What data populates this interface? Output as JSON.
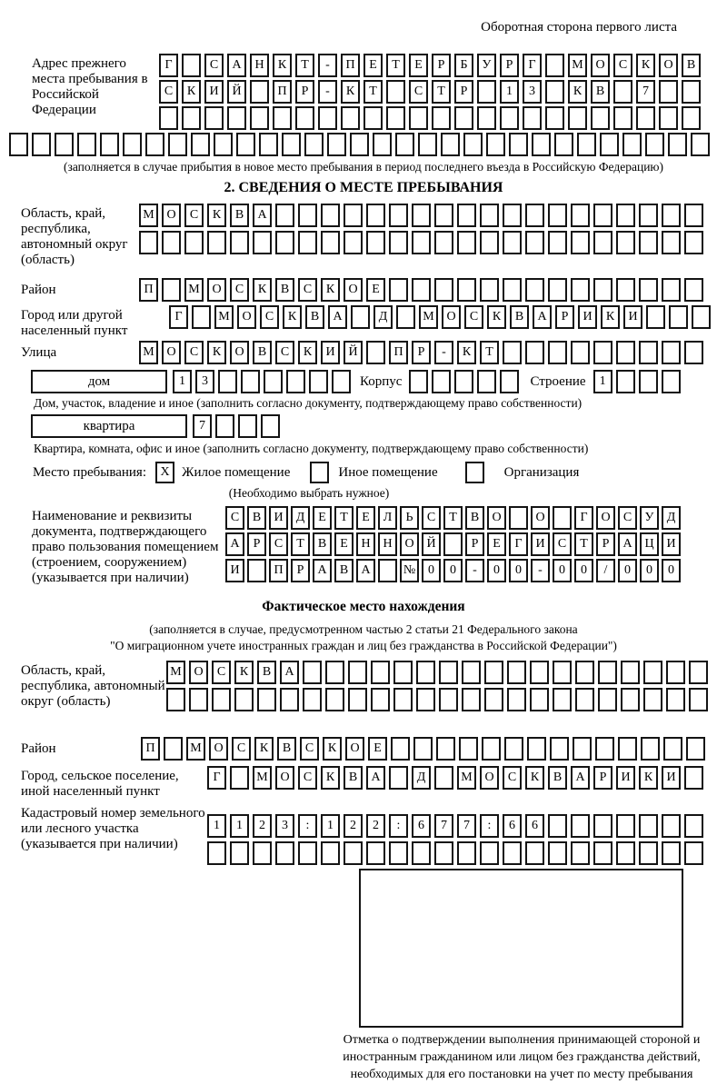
{
  "page": {
    "header_note": "Оборотная сторона первого листа"
  },
  "s1": {
    "label": "Адрес прежнего места пребывания в Российской Федерации",
    "row1": {
      "cells": [
        "Г",
        "",
        "С",
        "А",
        "Н",
        "К",
        "Т",
        "-",
        "П",
        "Е",
        "Т",
        "Е",
        "Р",
        "Б",
        "У",
        "Р",
        "Г",
        "",
        "М",
        "О",
        "С",
        "К",
        "О",
        "В"
      ],
      "total": 24
    },
    "row2": {
      "cells": [
        "С",
        "К",
        "И",
        "Й",
        "",
        "П",
        "Р",
        "-",
        "К",
        "Т",
        "",
        "С",
        "Т",
        "Р",
        "",
        "1",
        "3",
        "",
        "К",
        "В",
        "",
        "7",
        "",
        ""
      ],
      "total": 24
    },
    "row3": {
      "cells": [],
      "total": 24
    },
    "row4": {
      "cells": [],
      "total": 31
    },
    "caption": "(заполняется в случае прибытия в новое место пребывания в период последнего въезда в Российскую Федерацию)"
  },
  "s2": {
    "title": "2. СВЕДЕНИЯ О МЕСТЕ ПРЕБЫВАНИЯ",
    "region": {
      "label": "Область, край, республика, автономный округ (область)",
      "row1": {
        "cells": [
          "М",
          "О",
          "С",
          "К",
          "В",
          "А"
        ],
        "total": 25
      },
      "row2": {
        "cells": [],
        "total": 25
      }
    },
    "district": {
      "label": "Район",
      "row": {
        "cells": [
          "П",
          "",
          "М",
          "О",
          "С",
          "К",
          "В",
          "С",
          "К",
          "О",
          "Е"
        ],
        "total": 25
      }
    },
    "city": {
      "label": "Город или другой населенный пункт",
      "row": {
        "cells": [
          "Г",
          "",
          "М",
          "О",
          "С",
          "К",
          "В",
          "А",
          "",
          "Д",
          "",
          "М",
          "О",
          "С",
          "К",
          "В",
          "А",
          "Р",
          "И",
          "К",
          "И"
        ],
        "total": 24
      }
    },
    "street": {
      "label": "Улица",
      "row": {
        "cells": [
          "М",
          "О",
          "С",
          "К",
          "О",
          "В",
          "С",
          "К",
          "И",
          "Й",
          "",
          "П",
          "Р",
          "-",
          "К",
          "Т"
        ],
        "total": 25
      }
    },
    "house": {
      "type_label": "дом",
      "number": {
        "cells": [
          "1",
          "3"
        ],
        "total": 8
      },
      "korpus_label": "Корпус",
      "korpus": {
        "cells": [],
        "total": 5
      },
      "stroenie_label": "Строение",
      "stroenie": {
        "cells": [
          "1"
        ],
        "total": 4
      }
    },
    "house_caption": "Дом, участок, владение и иное (заполнить согласно документу, подтверждающему право собственности)",
    "apartment": {
      "type_label": "квартира",
      "number": {
        "cells": [
          "7"
        ],
        "total": 4
      }
    },
    "apartment_caption": "Квартира, комната, офис и иное (заполнить согласно документу, подтверждающему право собственности)",
    "stay": {
      "label": "Место пребывания:",
      "options": [
        {
          "mark": "X",
          "label": "Жилое помещение"
        },
        {
          "mark": "",
          "label": "Иное помещение"
        },
        {
          "mark": "",
          "label": "Организация"
        }
      ],
      "note": "(Необходимо выбрать нужное)"
    },
    "doc": {
      "label": "Наименование и реквизиты документа, подтверждающего право пользования помещением (строением, сооружением) (указывается при наличии)",
      "row1": {
        "cells": [
          "С",
          "В",
          "И",
          "Д",
          "Е",
          "Т",
          "Е",
          "Л",
          "Ь",
          "С",
          "Т",
          "В",
          "О",
          "",
          "О",
          "",
          "Г",
          "О",
          "С",
          "У",
          "Д"
        ],
        "total": 21
      },
      "row2": {
        "cells": [
          "А",
          "Р",
          "С",
          "Т",
          "В",
          "Е",
          "Н",
          "Н",
          "О",
          "Й",
          "",
          "Р",
          "Е",
          "Г",
          "И",
          "С",
          "Т",
          "Р",
          "А",
          "Ц",
          "И"
        ],
        "total": 21
      },
      "row3": {
        "cells": [
          "И",
          "",
          "П",
          "Р",
          "А",
          "В",
          "А",
          "",
          "№",
          "0",
          "0",
          "-",
          "0",
          "0",
          "-",
          "0",
          "0",
          "/",
          "0",
          "0",
          "0"
        ],
        "total": 21
      }
    }
  },
  "fact": {
    "title": "Фактическое место нахождения",
    "intro1": "(заполняется в случае, предусмотренном частью 2 статьи 21 Федерального закона",
    "intro2": "\"О миграционном учете иностранных граждан и лиц без гражданства в Российской Федерации\")",
    "region": {
      "label": "Область, край, республика, автономный округ (область)",
      "row1": {
        "cells": [
          "М",
          "О",
          "С",
          "К",
          "В",
          "А"
        ],
        "total": 24
      },
      "row2": {
        "cells": [],
        "total": 24
      }
    },
    "district": {
      "label": "Район",
      "row": {
        "cells": [
          "П",
          "",
          "М",
          "О",
          "С",
          "К",
          "В",
          "С",
          "К",
          "О",
          "Е"
        ],
        "total": 25
      }
    },
    "city": {
      "label": "Город, сельское поселение, иной населенный пункт",
      "row": {
        "cells": [
          "Г",
          "",
          "М",
          "О",
          "С",
          "К",
          "В",
          "А",
          "",
          "Д",
          "",
          "М",
          "О",
          "С",
          "К",
          "В",
          "А",
          "Р",
          "И",
          "К",
          "И"
        ],
        "total": 22
      }
    },
    "cadastral": {
      "label": "Кадастровый номер земельного или лесного участка (указывается при наличии)",
      "row1": {
        "cells": [
          "1",
          "1",
          "2",
          "3",
          ":",
          "1",
          "2",
          "2",
          ":",
          "6",
          "7",
          "7",
          ":",
          "6",
          "6"
        ],
        "total": 22
      },
      "row2": {
        "cells": [],
        "total": 22
      }
    },
    "stamp_caption": "Отметка о подтверждении выполнения принимающей стороной и иностранным гражданином или лицом без гражданства действий, необходимых для его постановки на учет по месту пребывания"
  }
}
